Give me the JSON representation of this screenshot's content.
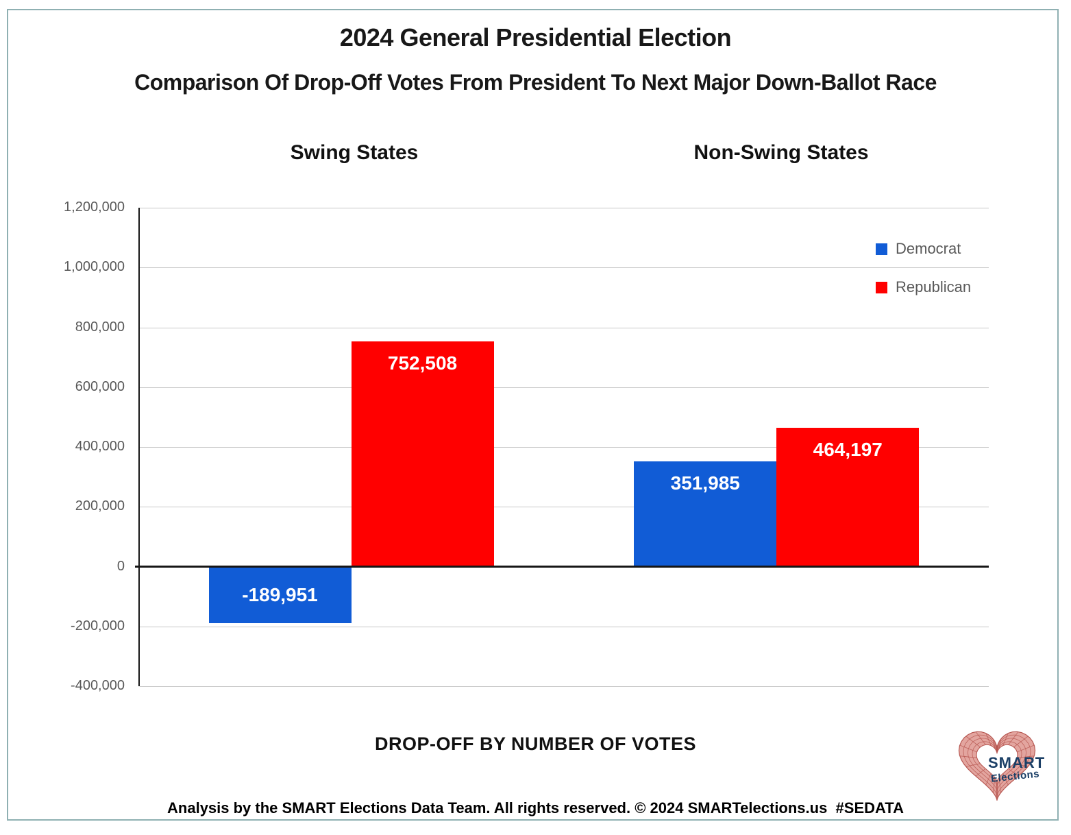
{
  "chart_data": {
    "type": "bar",
    "title": "2024 General Presidential Election",
    "subtitle": "Comparison Of Drop-Off Votes From President To Next Major Down-Ballot Race",
    "group_labels": [
      "Swing States",
      "Non-Swing States"
    ],
    "series": [
      {
        "name": "Democrat",
        "color": "#115CD6",
        "values": [
          -189951,
          351985
        ],
        "labels": [
          "-189,951",
          "351,985"
        ]
      },
      {
        "name": "Republican",
        "color": "#FF0000",
        "values": [
          752508,
          464197
        ],
        "labels": [
          "752,508",
          "464,197"
        ]
      }
    ],
    "ylim": [
      -400000,
      1200000
    ],
    "ytick_step": 200000,
    "ytick_labels": [
      "1,200,000",
      "1,000,000",
      "800,000",
      "600,000",
      "400,000",
      "200,000",
      "0",
      "-200,000",
      "-400,000"
    ],
    "xlabel": "DROP-OFF BY NUMBER OF VOTES",
    "grid": true,
    "legend_position": "upper right",
    "axis_color": "#161616",
    "gridline_color": "#c6c6c6",
    "tick_label_color": "#595959"
  },
  "footer": {
    "text": "Analysis by the SMART Elections Data Team. All rights reserved. © 2024 SMARTelections.us  #SEDATA"
  },
  "logo": {
    "line1": "SMART",
    "line2": "Elections",
    "heart_fill": "#e3a59f",
    "mesh_color": "#b5544e",
    "text_color": "#1b3f66"
  }
}
